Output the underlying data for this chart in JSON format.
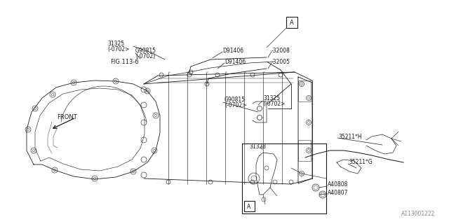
{
  "bg_color": "#ffffff",
  "line_color": "#1a1a1a",
  "fig_width": 6.4,
  "fig_height": 3.2,
  "dpi": 100,
  "watermark": "A113001222",
  "font_size_small": 5.5,
  "font_size_watermark": 5.5,
  "labels": {
    "fig_ref": "FIG.113-6",
    "front": "FRONT",
    "p31325_top_line1": "31325",
    "p31325_top_line2": "(-0702>",
    "pG90815_top_line1": "G90815",
    "pG90815_top_line2": "(-0702)",
    "pD91406_top": "D91406",
    "p32008": "-32008",
    "pD91406_bot": "D91406",
    "p32005": "-32005",
    "pG90815_bot_line1": "G90815",
    "pG90815_bot_line2": "(-0702>",
    "p31325_bot_line1": "31325",
    "p31325_bot_line2": "(-0702>",
    "p31328": "31328",
    "p35211H": "35211*H",
    "p35211G": "35211*G",
    "pA40808": "A40808",
    "pA40807": "A40807",
    "section_A": "A"
  },
  "lw": 0.6
}
